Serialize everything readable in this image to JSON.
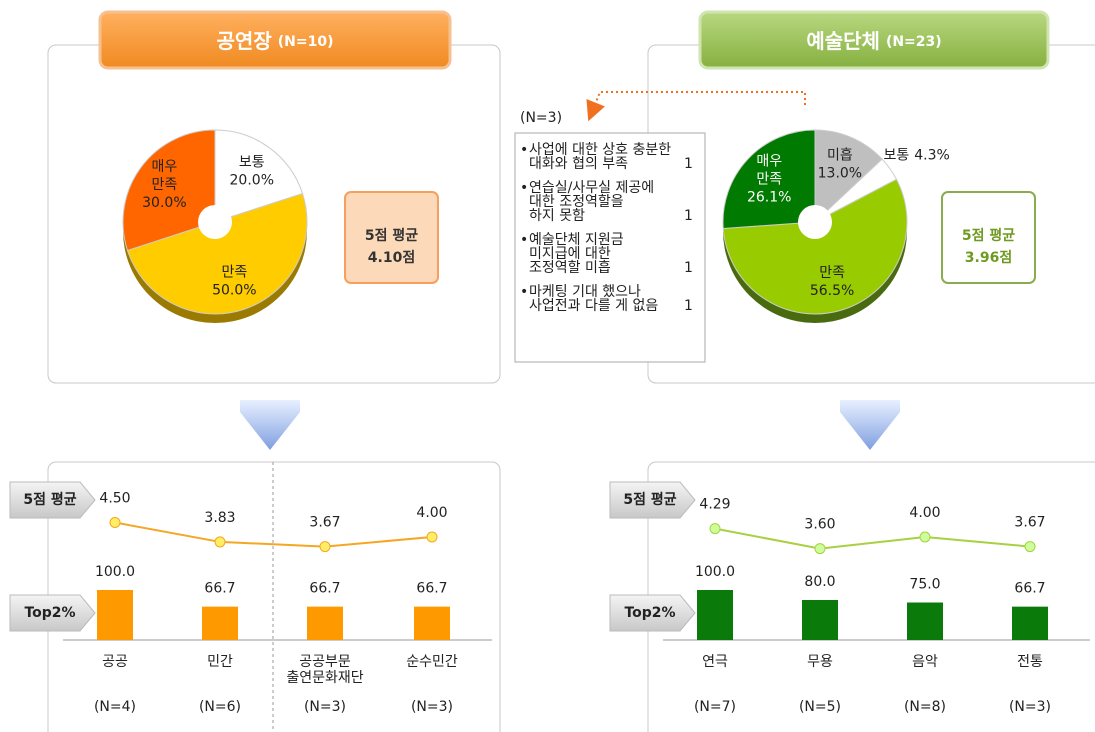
{
  "chart_data": [
    {
      "type": "pie",
      "title": "공연장",
      "subtitle": "(N=10)",
      "categories": [
        [
          "보통"
        ],
        [
          "만족"
        ],
        [
          "매우",
          "만족"
        ]
      ],
      "values": [
        20,
        50,
        30
      ],
      "value_labels": [
        "20.0%",
        "50.0%",
        "30.0%"
      ],
      "colors": [
        "#ffffff",
        "#ffcc00",
        "#ff6600"
      ],
      "label_colors": [
        "#222222",
        "#222222",
        "#222222"
      ],
      "average_title": "5점 평균",
      "average": "4.10점"
    },
    {
      "type": "pie",
      "title": "예술단체",
      "subtitle": "(N=23)",
      "categories": [
        [
          "미흡"
        ],
        [
          "보통"
        ],
        [
          "만족"
        ],
        [
          "매우",
          "만족"
        ]
      ],
      "values": [
        13,
        4.3,
        56.5,
        26.1
      ],
      "value_labels": [
        "13.0%",
        "4.3%",
        "56.5%",
        "26.1%"
      ],
      "colors": [
        "#bfbfbf",
        "#ffffff",
        "#99cc00",
        "#007a00"
      ],
      "label_colors": [
        "#222222",
        "#222222",
        "#222222",
        "#ffffff"
      ],
      "average_title": "5점 평균",
      "average": "3.96점"
    },
    {
      "type": "line_bar",
      "categories": [
        [
          "공공"
        ],
        [
          "민간"
        ],
        [
          "공공부문",
          "출연문화재단"
        ],
        [
          "순수민간"
        ]
      ],
      "sample_sizes": [
        "(N=4)",
        "(N=6)",
        "(N=3)",
        "(N=3)"
      ],
      "series": [
        {
          "name": "5점 평균",
          "type": "line",
          "color": "#f5a623",
          "marker_color": "#ffee66",
          "values": [
            4.5,
            3.83,
            3.67,
            4.0
          ],
          "value_labels": [
            "4.50",
            "3.83",
            "3.67",
            "4.00"
          ],
          "ylim": [
            3,
            5
          ]
        },
        {
          "name": "Top2%",
          "type": "bar",
          "color": "#ff9900",
          "values": [
            100,
            66.7,
            66.7,
            66.7
          ],
          "value_labels": [
            "100.0",
            "66.7",
            "66.7",
            "66.7"
          ],
          "ylim": [
            0,
            100
          ]
        }
      ]
    },
    {
      "type": "line_bar",
      "categories": [
        [
          "연극"
        ],
        [
          "무용"
        ],
        [
          "음악"
        ],
        [
          "전통"
        ]
      ],
      "sample_sizes": [
        "(N=7)",
        "(N=5)",
        "(N=8)",
        "(N=3)"
      ],
      "series": [
        {
          "name": "5점 평균",
          "type": "line",
          "color": "#a8d040",
          "marker_color": "#ccff99",
          "values": [
            4.29,
            3.6,
            4.0,
            3.67
          ],
          "value_labels": [
            "4.29",
            "3.60",
            "4.00",
            "3.67"
          ],
          "ylim": [
            3,
            5
          ]
        },
        {
          "name": "Top2%",
          "type": "bar",
          "color": "#0a7a0a",
          "values": [
            100,
            80,
            75,
            66.7
          ],
          "value_labels": [
            "100.0",
            "80.0",
            "75.0",
            "66.7"
          ],
          "ylim": [
            0,
            100
          ]
        }
      ]
    }
  ],
  "note": {
    "title": "(N=3)",
    "items": [
      {
        "text": [
          "사업에 대한 상호 충분한",
          "대화와 협의 부족"
        ],
        "count": "1"
      },
      {
        "text": [
          "연습실/사무실 제공에",
          "대한 조정역할을",
          "하지 못함"
        ],
        "count": "1"
      },
      {
        "text": [
          "예술단체 지원금",
          "미지급에 대한",
          "조정역할 미흡"
        ],
        "count": "1"
      },
      {
        "text": [
          "마케팅 기대 했으나",
          "사업전과 다를 게 없음"
        ],
        "count": "1"
      }
    ]
  }
}
